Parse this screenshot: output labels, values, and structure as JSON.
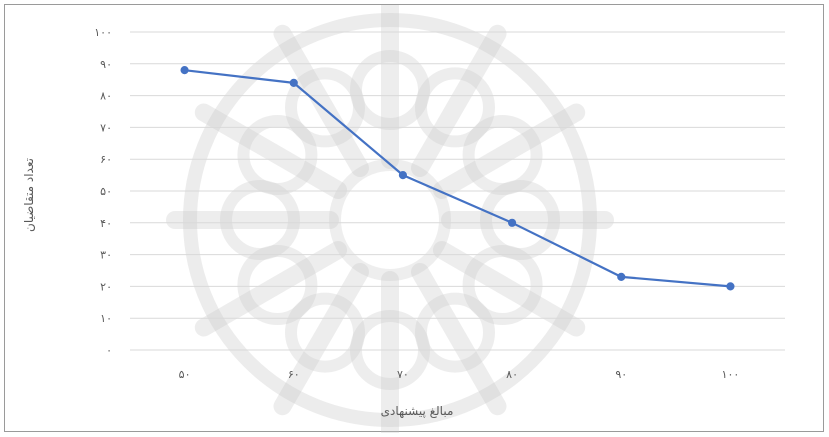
{
  "chart_data": {
    "type": "line",
    "categories": [
      "۵۰",
      "۶۰",
      "۷۰",
      "۸۰",
      "۹۰",
      "۱۰۰"
    ],
    "x": [
      50,
      60,
      70,
      80,
      90,
      100
    ],
    "series": [
      {
        "values": [
          88,
          84,
          55,
          40,
          23,
          20
        ],
        "color": "#4472c4"
      }
    ],
    "y_ticks": [
      0,
      10,
      20,
      30,
      40,
      50,
      60,
      70,
      80,
      90,
      100
    ],
    "y_tick_labels": [
      "۰",
      "۱۰",
      "۲۰",
      "۳۰",
      "۴۰",
      "۵۰",
      "۶۰",
      "۷۰",
      "۸۰",
      "۹۰",
      "۱۰۰"
    ],
    "ylim": [
      0,
      100
    ],
    "xlabel": "مبالغ پیشنهادی",
    "ylabel": "تعداد متقاضیان",
    "title": "",
    "grid": true,
    "legend": "none"
  },
  "watermark": {
    "type": "decorative-star-emblem",
    "color": "#c8c8c8"
  }
}
